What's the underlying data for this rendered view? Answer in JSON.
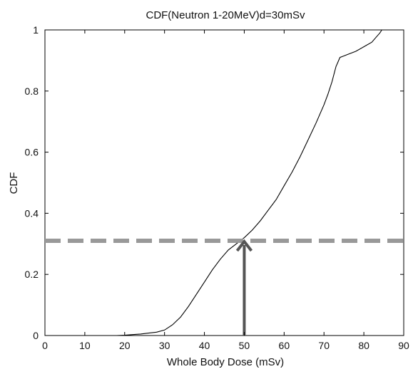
{
  "chart_data": {
    "type": "line",
    "title": "CDF(Neutron 1-20MeV)d=30mSv",
    "xlabel": "Whole Body Dose (mSv)",
    "ylabel": "CDF",
    "xlim": [
      0,
      90
    ],
    "ylim": [
      0,
      1
    ],
    "xticks": [
      "0",
      "10",
      "20",
      "30",
      "40",
      "50",
      "60",
      "70",
      "80",
      "90"
    ],
    "yticks": [
      "0",
      "0.2",
      "0.4",
      "0.6",
      "0.8",
      "1"
    ],
    "grid": false,
    "series": [
      {
        "type": "line",
        "x": [
          15,
          18,
          20,
          22,
          24,
          26,
          28,
          30,
          32,
          34,
          36,
          38,
          40,
          42,
          44,
          46,
          48,
          50,
          52,
          54,
          56,
          58,
          60,
          62,
          64,
          66,
          68,
          70,
          71,
          72,
          73,
          74,
          75,
          76,
          78,
          80,
          82,
          83,
          84,
          84.5
        ],
        "y": [
          0,
          0,
          0.001,
          0.003,
          0.005,
          0.008,
          0.011,
          0.018,
          0.035,
          0.06,
          0.095,
          0.135,
          0.175,
          0.215,
          0.25,
          0.28,
          0.3,
          0.32,
          0.345,
          0.375,
          0.41,
          0.445,
          0.49,
          0.535,
          0.585,
          0.64,
          0.695,
          0.755,
          0.79,
          0.83,
          0.88,
          0.91,
          0.915,
          0.92,
          0.93,
          0.945,
          0.96,
          0.975,
          0.99,
          1.0
        ],
        "color": "#000000"
      }
    ],
    "reference_line": {
      "y": 0.31,
      "style": "dashed",
      "color": "#999999"
    },
    "arrow": {
      "x": 50,
      "y_from": 0,
      "y_to": 0.31,
      "color": "#555555"
    }
  }
}
